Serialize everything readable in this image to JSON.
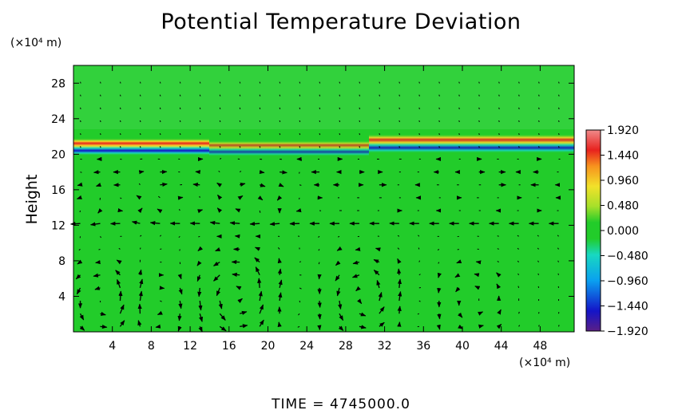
{
  "title": "Potential Temperature Deviation",
  "y_unit": "(×10⁴ m)",
  "x_unit": "(×10⁴ m)",
  "ylabel": "Height",
  "time_label": "TIME  =  4745000.0",
  "colors": {
    "background_field": "#22cc2a",
    "arrows": "#000000",
    "axes": "#000000"
  },
  "chart_data": {
    "type": "heatmap",
    "title": "Potential Temperature Deviation",
    "xlabel": "",
    "ylabel": "Height",
    "x_unit": "×10⁴ m",
    "y_unit": "×10⁴ m",
    "xlim": [
      0,
      51.5
    ],
    "ylim": [
      0,
      30
    ],
    "x_ticks": [
      4,
      8,
      12,
      16,
      20,
      24,
      28,
      32,
      36,
      40,
      44,
      48
    ],
    "y_ticks": [
      4,
      8,
      12,
      16,
      20,
      24,
      28
    ],
    "colorbar": {
      "labels": [
        "1.920",
        "1.440",
        "0.960",
        "0.480",
        "0.000",
        "−0.480",
        "−0.960",
        "−1.440",
        "−1.920"
      ],
      "values": [
        1.92,
        1.44,
        0.96,
        0.48,
        0.0,
        -0.48,
        -0.96,
        -1.44,
        -1.92
      ],
      "range": [
        -1.92,
        1.92
      ]
    },
    "overlay": "wind vector arrows",
    "time": 4745000.0
  }
}
